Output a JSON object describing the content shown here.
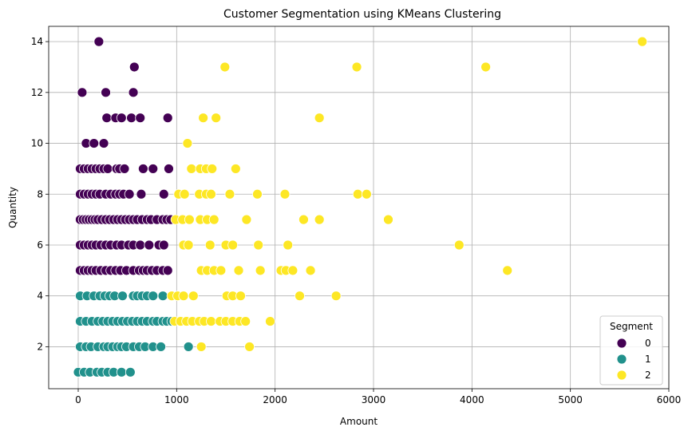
{
  "chart_data": {
    "type": "scatter",
    "title": "Customer Segmentation using KMeans Clustering",
    "xlabel": "Amount",
    "ylabel": "Quantity",
    "xlim": [
      -300,
      6000
    ],
    "ylim": [
      0.35,
      14.6
    ],
    "xticks": [
      0,
      1000,
      2000,
      3000,
      4000,
      5000,
      6000
    ],
    "yticks": [
      2,
      4,
      6,
      8,
      10,
      12,
      14
    ],
    "grid": true,
    "legend": {
      "title": "Segment",
      "placement": "bottom-right"
    },
    "series": [
      {
        "name": "0",
        "color": "#440154",
        "points": [
          [
            210,
            14
          ],
          [
            570,
            13
          ],
          [
            40,
            12
          ],
          [
            280,
            12
          ],
          [
            560,
            12
          ],
          [
            290,
            11
          ],
          [
            380,
            11
          ],
          [
            440,
            11
          ],
          [
            540,
            11
          ],
          [
            630,
            11
          ],
          [
            910,
            11
          ],
          [
            80,
            10
          ],
          [
            160,
            10
          ],
          [
            260,
            10
          ],
          [
            20,
            9
          ],
          [
            60,
            9
          ],
          [
            100,
            9
          ],
          [
            140,
            9
          ],
          [
            180,
            9
          ],
          [
            220,
            9
          ],
          [
            260,
            9
          ],
          [
            300,
            9
          ],
          [
            390,
            9
          ],
          [
            420,
            9
          ],
          [
            470,
            9
          ],
          [
            660,
            9
          ],
          [
            760,
            9
          ],
          [
            920,
            9
          ],
          [
            20,
            8
          ],
          [
            60,
            8
          ],
          [
            100,
            8
          ],
          [
            140,
            8
          ],
          [
            180,
            8
          ],
          [
            220,
            8
          ],
          [
            280,
            8
          ],
          [
            330,
            8
          ],
          [
            380,
            8
          ],
          [
            420,
            8
          ],
          [
            460,
            8
          ],
          [
            520,
            8
          ],
          [
            640,
            8
          ],
          [
            870,
            8
          ],
          [
            20,
            7
          ],
          [
            50,
            7
          ],
          [
            80,
            7
          ],
          [
            110,
            7
          ],
          [
            140,
            7
          ],
          [
            170,
            7
          ],
          [
            200,
            7
          ],
          [
            240,
            7
          ],
          [
            280,
            7
          ],
          [
            320,
            7
          ],
          [
            360,
            7
          ],
          [
            400,
            7
          ],
          [
            440,
            7
          ],
          [
            480,
            7
          ],
          [
            520,
            7
          ],
          [
            560,
            7
          ],
          [
            600,
            7
          ],
          [
            650,
            7
          ],
          [
            700,
            7
          ],
          [
            740,
            7
          ],
          [
            800,
            7
          ],
          [
            860,
            7
          ],
          [
            900,
            7
          ],
          [
            940,
            7
          ],
          [
            20,
            6
          ],
          [
            60,
            6
          ],
          [
            100,
            6
          ],
          [
            140,
            6
          ],
          [
            180,
            6
          ],
          [
            230,
            6
          ],
          [
            280,
            6
          ],
          [
            330,
            6
          ],
          [
            390,
            6
          ],
          [
            440,
            6
          ],
          [
            510,
            6
          ],
          [
            560,
            6
          ],
          [
            630,
            6
          ],
          [
            720,
            6
          ],
          [
            820,
            6
          ],
          [
            870,
            6
          ],
          [
            20,
            5
          ],
          [
            60,
            5
          ],
          [
            100,
            5
          ],
          [
            140,
            5
          ],
          [
            180,
            5
          ],
          [
            230,
            5
          ],
          [
            280,
            5
          ],
          [
            330,
            5
          ],
          [
            380,
            5
          ],
          [
            430,
            5
          ],
          [
            490,
            5
          ],
          [
            560,
            5
          ],
          [
            620,
            5
          ],
          [
            660,
            5
          ],
          [
            700,
            5
          ],
          [
            750,
            5
          ],
          [
            800,
            5
          ],
          [
            860,
            5
          ],
          [
            910,
            5
          ]
        ]
      },
      {
        "name": "1",
        "color": "#21918c",
        "points": [
          [
            20,
            4
          ],
          [
            90,
            4
          ],
          [
            160,
            4
          ],
          [
            220,
            4
          ],
          [
            270,
            4
          ],
          [
            320,
            4
          ],
          [
            370,
            4
          ],
          [
            450,
            4
          ],
          [
            560,
            4
          ],
          [
            600,
            4
          ],
          [
            650,
            4
          ],
          [
            700,
            4
          ],
          [
            760,
            4
          ],
          [
            860,
            4
          ],
          [
            20,
            3
          ],
          [
            80,
            3
          ],
          [
            140,
            3
          ],
          [
            200,
            3
          ],
          [
            250,
            3
          ],
          [
            300,
            3
          ],
          [
            350,
            3
          ],
          [
            400,
            3
          ],
          [
            450,
            3
          ],
          [
            500,
            3
          ],
          [
            550,
            3
          ],
          [
            600,
            3
          ],
          [
            650,
            3
          ],
          [
            700,
            3
          ],
          [
            760,
            3
          ],
          [
            800,
            3
          ],
          [
            860,
            3
          ],
          [
            900,
            3
          ],
          [
            950,
            3
          ],
          [
            20,
            2
          ],
          [
            80,
            2
          ],
          [
            130,
            2
          ],
          [
            200,
            2
          ],
          [
            260,
            2
          ],
          [
            300,
            2
          ],
          [
            350,
            2
          ],
          [
            400,
            2
          ],
          [
            440,
            2
          ],
          [
            490,
            2
          ],
          [
            560,
            2
          ],
          [
            620,
            2
          ],
          [
            680,
            2
          ],
          [
            760,
            2
          ],
          [
            840,
            2
          ],
          [
            1120,
            2
          ],
          [
            0,
            1
          ],
          [
            60,
            1
          ],
          [
            120,
            1
          ],
          [
            190,
            1
          ],
          [
            240,
            1
          ],
          [
            300,
            1
          ],
          [
            360,
            1
          ],
          [
            440,
            1
          ],
          [
            530,
            1
          ]
        ]
      },
      {
        "name": "2",
        "color": "#fde725",
        "points": [
          [
            5730,
            14
          ],
          [
            1490,
            13
          ],
          [
            2830,
            13
          ],
          [
            4140,
            13
          ],
          [
            1270,
            11
          ],
          [
            1400,
            11
          ],
          [
            2450,
            11
          ],
          [
            1110,
            10
          ],
          [
            1150,
            9
          ],
          [
            1240,
            9
          ],
          [
            1300,
            9
          ],
          [
            1360,
            9
          ],
          [
            1600,
            9
          ],
          [
            1020,
            8
          ],
          [
            1080,
            8
          ],
          [
            1230,
            8
          ],
          [
            1300,
            8
          ],
          [
            1350,
            8
          ],
          [
            1540,
            8
          ],
          [
            1820,
            8
          ],
          [
            2100,
            8
          ],
          [
            2840,
            8
          ],
          [
            2930,
            8
          ],
          [
            990,
            7
          ],
          [
            1060,
            7
          ],
          [
            1130,
            7
          ],
          [
            1240,
            7
          ],
          [
            1310,
            7
          ],
          [
            1380,
            7
          ],
          [
            1710,
            7
          ],
          [
            2290,
            7
          ],
          [
            2450,
            7
          ],
          [
            3150,
            7
          ],
          [
            1070,
            6
          ],
          [
            1120,
            6
          ],
          [
            1340,
            6
          ],
          [
            1500,
            6
          ],
          [
            1570,
            6
          ],
          [
            1830,
            6
          ],
          [
            2130,
            6
          ],
          [
            3870,
            6
          ],
          [
            1250,
            5
          ],
          [
            1310,
            5
          ],
          [
            1380,
            5
          ],
          [
            1450,
            5
          ],
          [
            1630,
            5
          ],
          [
            1850,
            5
          ],
          [
            2060,
            5
          ],
          [
            2110,
            5
          ],
          [
            2180,
            5
          ],
          [
            2360,
            5
          ],
          [
            4360,
            5
          ],
          [
            950,
            4
          ],
          [
            1010,
            4
          ],
          [
            1070,
            4
          ],
          [
            1170,
            4
          ],
          [
            1510,
            4
          ],
          [
            1570,
            4
          ],
          [
            1650,
            4
          ],
          [
            2250,
            4
          ],
          [
            2620,
            4
          ],
          [
            980,
            3
          ],
          [
            1040,
            3
          ],
          [
            1100,
            3
          ],
          [
            1160,
            3
          ],
          [
            1230,
            3
          ],
          [
            1280,
            3
          ],
          [
            1350,
            3
          ],
          [
            1440,
            3
          ],
          [
            1500,
            3
          ],
          [
            1570,
            3
          ],
          [
            1640,
            3
          ],
          [
            1700,
            3
          ],
          [
            1950,
            3
          ],
          [
            1250,
            2
          ],
          [
            1740,
            2
          ]
        ]
      }
    ]
  }
}
